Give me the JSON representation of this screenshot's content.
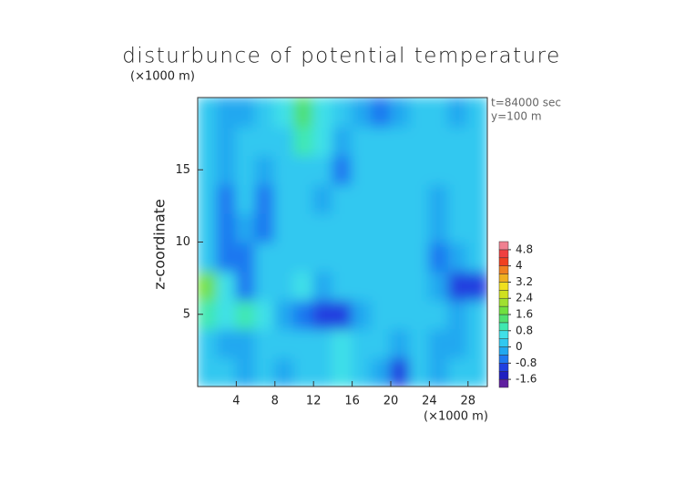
{
  "chart_data": {
    "type": "contour",
    "title": "disturbunce of potential temperature",
    "y_unit": "(×1000 m)",
    "x_unit": "(×1000 m)",
    "ylabel": "z-coordinate",
    "annotations": [
      "t=84000 sec",
      "y=100 m"
    ],
    "x": [
      1,
      3,
      5,
      7,
      9,
      11,
      13,
      15,
      17,
      19,
      21,
      23,
      25,
      27,
      29
    ],
    "y": [
      1,
      3,
      5,
      7,
      9,
      11,
      13,
      15,
      17,
      19
    ],
    "values": [
      [
        0,
        0,
        -0.2,
        0,
        -0.2,
        0,
        0.2,
        0.4,
        0.2,
        -0.2,
        -0.9,
        0,
        -0.2,
        0,
        0
      ],
      [
        0,
        -0.2,
        -0.4,
        0,
        0.2,
        0,
        0.2,
        0.4,
        0.2,
        0,
        -0.4,
        0,
        -0.2,
        -0.2,
        0
      ],
      [
        0.8,
        0.4,
        0.8,
        0.6,
        -0.3,
        -0.6,
        -1.2,
        -1.0,
        -0.3,
        0,
        0,
        0,
        0,
        -0.3,
        0
      ],
      [
        1.8,
        0.4,
        -0.8,
        0,
        0,
        0.6,
        -0.4,
        0,
        0,
        0,
        0,
        0,
        -0.4,
        -1.0,
        -1.2
      ],
      [
        0,
        -0.6,
        -0.6,
        0,
        0,
        0,
        0,
        0,
        0,
        0,
        0,
        0,
        -0.6,
        -0.4,
        0
      ],
      [
        0,
        -0.6,
        -0.2,
        -0.8,
        0,
        0,
        0,
        0,
        0,
        0,
        0,
        0,
        -0.3,
        0,
        0
      ],
      [
        0,
        -0.5,
        0,
        -0.6,
        0,
        0,
        -0.3,
        0,
        0.2,
        0.2,
        0,
        0,
        -0.4,
        0,
        0
      ],
      [
        0,
        -0.4,
        0,
        -0.3,
        0,
        0,
        0,
        -0.5,
        0.2,
        0,
        0,
        0,
        0,
        0,
        0
      ],
      [
        0,
        -0.3,
        0,
        0,
        0,
        0.8,
        0.4,
        -0.3,
        0,
        0,
        0,
        0,
        0,
        0,
        0
      ],
      [
        0,
        -0.2,
        -0.4,
        0,
        0.4,
        1.4,
        0.4,
        0,
        -0.4,
        -0.5,
        -0.3,
        0,
        0,
        -0.2,
        0
      ]
    ],
    "xlim": [
      0,
      30
    ],
    "xticks": [
      4,
      8,
      12,
      16,
      20,
      24,
      28
    ],
    "ylim": [
      0,
      20
    ],
    "yticks": [
      5,
      10,
      15
    ],
    "colorbar": {
      "levels": [
        -2.0,
        -1.6,
        -1.2,
        -0.8,
        -0.4,
        0,
        0.4,
        0.8,
        1.2,
        1.6,
        2.0,
        2.4,
        2.8,
        3.2,
        3.6,
        4.0,
        4.4,
        4.8,
        5.2
      ],
      "colors": [
        "#6020a0",
        "#2020c0",
        "#2040e0",
        "#1e78f0",
        "#20a8f0",
        "#30c8f0",
        "#40e0e8",
        "#40e8b0",
        "#50e070",
        "#70e040",
        "#a0e030",
        "#d0e020",
        "#f0e020",
        "#f0b020",
        "#f08020",
        "#f04020",
        "#f04040",
        "#f08090"
      ],
      "ticks": [
        4.8,
        4,
        3.2,
        2.4,
        1.6,
        0.8,
        0,
        -0.8,
        -1.6
      ]
    }
  }
}
